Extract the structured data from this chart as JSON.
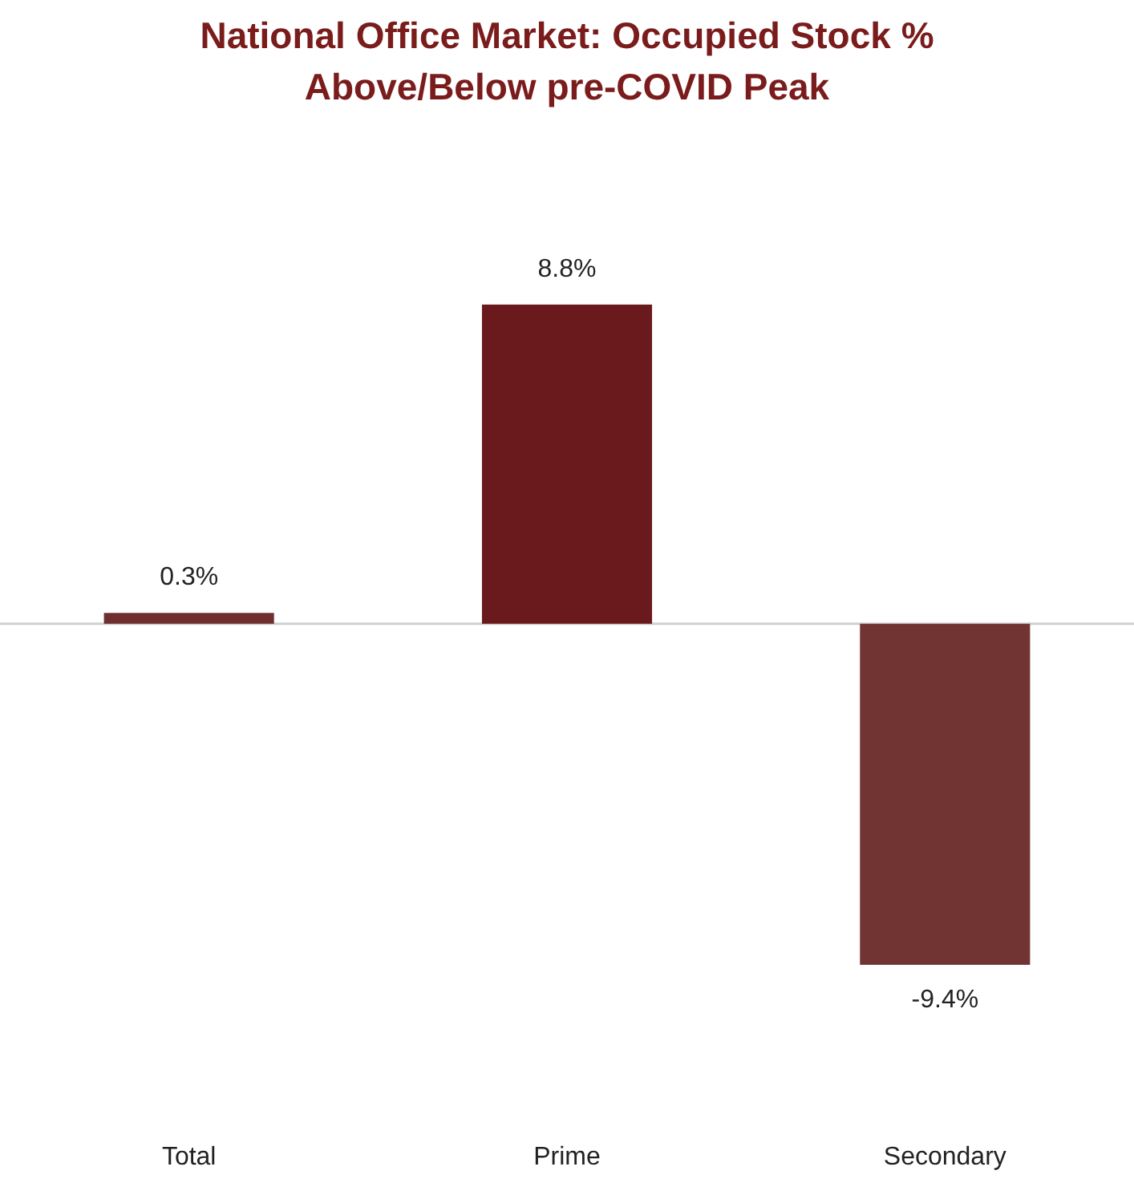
{
  "chart_data": {
    "type": "bar",
    "title": "National Office Market: Occupied Stock % Above/Below pre-COVID Peak",
    "categories": [
      "Total",
      "Prime",
      "Secondary"
    ],
    "values": [
      0.3,
      8.8,
      -9.4
    ],
    "colors": [
      "#702f2f",
      "#6a1a1c",
      "#723333"
    ],
    "value_labels": [
      "0.3%",
      "8.8%",
      "-9.4%"
    ],
    "grid": false,
    "legend": false
  }
}
